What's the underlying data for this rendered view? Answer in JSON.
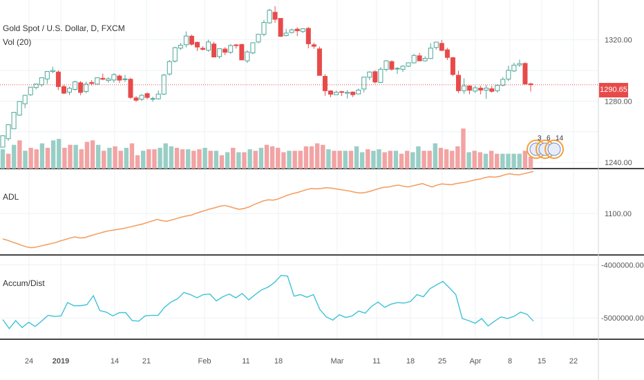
{
  "header": {
    "symbol": "Gold Spot / U.S. Dollar, D, FXCM",
    "volume": "Vol (20)"
  },
  "panes": {
    "adl": {
      "label": "ADL"
    },
    "ad": {
      "label": "Accum/Dist"
    }
  },
  "price_badge": {
    "value": "1290.65",
    "color": "#e84a4a"
  },
  "colors": {
    "up": "#4aa596",
    "down": "#e84a4a",
    "vol_up": "#98cec5",
    "vol_down": "#f2a3a3",
    "adl": "#f4a063",
    "ad": "#3cc3d6",
    "grid": "#eef1f4",
    "separator": "#444444"
  },
  "dividend_markers": {
    "labels": [
      "3",
      "6",
      "14"
    ],
    "color": "#f2a03c"
  },
  "chart_data": [
    {
      "type": "candlestick",
      "title": "Gold Spot / U.S. Dollar, D, FXCM",
      "y_ticks": [
        1240,
        1260,
        1280,
        1300,
        1320
      ],
      "y_tick_labels": [
        "1240.00",
        "1280.00",
        "1320.00"
      ],
      "ylim": [
        1236,
        1346
      ],
      "last_price": 1290.65,
      "x_labels": [
        "24",
        "2019",
        "14",
        "21",
        "Feb",
        "11",
        "18",
        "Mar",
        "11",
        "18",
        "25",
        "Apr",
        "8",
        "15",
        "22"
      ],
      "candles": [
        [
          1250.0,
          1257.4,
          1254.8,
          1249.8
        ],
        [
          1255.5,
          1264.6,
          1264.9,
          1254.1
        ],
        [
          1262.0,
          1272.7,
          1271.7,
          1262.7
        ],
        [
          1270.9,
          1279.8,
          1278.2,
          1270.5
        ],
        [
          1278.3,
          1283.8,
          1284.2,
          1275.4
        ],
        [
          1284.2,
          1289.1,
          1287.2,
          1283.5
        ],
        [
          1288.9,
          1291.2,
          1290.5,
          1287.7
        ],
        [
          1290.7,
          1295.3,
          1294.4,
          1289.4
        ],
        [
          1294.5,
          1299.3,
          1299.1,
          1291.2
        ],
        [
          1299.3,
          1300.0,
          1302.5,
          1298.2
        ],
        [
          1299.0,
          1289.5,
          1300.1,
          1287.2
        ],
        [
          1289.5,
          1285.2,
          1290.7,
          1284.6
        ],
        [
          1285.9,
          1288.4,
          1289.4,
          1283.9
        ],
        [
          1287.6,
          1292.6,
          1293.3,
          1286.9
        ],
        [
          1292.0,
          1285.7,
          1293.1,
          1283.9
        ],
        [
          1286.3,
          1291.1,
          1292.8,
          1285.2
        ],
        [
          1292.2,
          1291.5,
          1293.8,
          1290.1
        ],
        [
          1291.1,
          1295.3,
          1295.1,
          1290.8
        ],
        [
          1294.9,
          1294.3,
          1298.0,
          1293.6
        ],
        [
          1293.5,
          1294.5,
          1295.6,
          1292.0
        ],
        [
          1293.8,
          1297.3,
          1298.2,
          1292.1
        ],
        [
          1296.4,
          1293.7,
          1297.4,
          1291.9
        ],
        [
          1294.4,
          1294.5,
          1297.1,
          1292.5
        ],
        [
          1294.3,
          1282.4,
          1295.2,
          1281.4
        ],
        [
          1282.1,
          1280.6,
          1283.3,
          1279.5
        ],
        [
          1281.3,
          1283.8,
          1284.5,
          1280.1
        ],
        [
          1284.9,
          1282.4,
          1285.6,
          1281.2
        ],
        [
          1281.7,
          1281.7,
          1282.9,
          1279.6
        ],
        [
          1281.5,
          1284.6,
          1287.0,
          1281.0
        ],
        [
          1284.6,
          1297.0,
          1297.8,
          1284.0
        ],
        [
          1297.7,
          1305.8,
          1306.8,
          1296.6
        ],
        [
          1306.1,
          1314.9,
          1315.5,
          1305.3
        ],
        [
          1314.6,
          1316.5,
          1318.0,
          1313.3
        ],
        [
          1316.8,
          1322.5,
          1325.5,
          1315.0
        ],
        [
          1322.4,
          1317.1,
          1323.4,
          1316.3
        ],
        [
          1318.4,
          1315.3,
          1318.8,
          1312.7
        ],
        [
          1314.5,
          1313.8,
          1315.9,
          1313.0
        ],
        [
          1313.2,
          1318.6,
          1320.1,
          1312.2
        ],
        [
          1317.3,
          1308.8,
          1318.7,
          1308.6
        ],
        [
          1309.1,
          1314.2,
          1314.4,
          1307.7
        ],
        [
          1314.0,
          1311.9,
          1315.2,
          1310.0
        ],
        [
          1311.9,
          1316.3,
          1317.2,
          1310.8
        ],
        [
          1316.7,
          1316.2,
          1317.4,
          1314.3
        ],
        [
          1317.0,
          1306.9,
          1317.4,
          1307.3
        ],
        [
          1306.3,
          1312.1,
          1313.1,
          1304.9
        ],
        [
          1311.5,
          1318.1,
          1318.0,
          1310.6
        ],
        [
          1318.6,
          1323.6,
          1323.8,
          1317.7
        ],
        [
          1323.6,
          1331.3,
          1333.0,
          1322.3
        ],
        [
          1331.1,
          1339.3,
          1340.3,
          1330.5
        ],
        [
          1338.0,
          1333.4,
          1342.0,
          1331.1
        ],
        [
          1334.0,
          1322.3,
          1333.6,
          1321.9
        ],
        [
          1322.8,
          1324.4,
          1327.2,
          1322.3
        ],
        [
          1324.8,
          1326.5,
          1327.4,
          1324.2
        ],
        [
          1327.0,
          1325.9,
          1328.2,
          1322.4
        ],
        [
          1325.4,
          1327.2,
          1327.7,
          1324.5
        ],
        [
          1327.5,
          1317.4,
          1328.3,
          1314.5
        ],
        [
          1316.8,
          1315.8,
          1318.2,
          1314.2
        ],
        [
          1314.1,
          1296.8,
          1315.6,
          1296.7
        ],
        [
          1296.2,
          1286.8,
          1297.6,
          1283.5
        ],
        [
          1286.7,
          1284.5,
          1287.1,
          1282.5
        ],
        [
          1284.2,
          1285.8,
          1286.9,
          1284.5
        ],
        [
          1286.2,
          1285.7,
          1286.7,
          1283.3
        ],
        [
          1285.1,
          1285.8,
          1287.2,
          1281.7
        ],
        [
          1285.9,
          1284.2,
          1286.4,
          1282.6
        ],
        [
          1284.7,
          1287.2,
          1288.2,
          1284.4
        ],
        [
          1287.9,
          1295.7,
          1295.6,
          1285.7
        ],
        [
          1295.6,
          1299.0,
          1299.5,
          1293.8
        ],
        [
          1299.2,
          1292.5,
          1300.2,
          1291.4
        ],
        [
          1292.2,
          1300.8,
          1302.2,
          1291.8
        ],
        [
          1300.7,
          1306.3,
          1306.7,
          1299.4
        ],
        [
          1305.8,
          1300.8,
          1306.6,
          1299.9
        ],
        [
          1301.3,
          1301.4,
          1302.2,
          1297.8
        ],
        [
          1300.8,
          1302.8,
          1303.4,
          1299.1
        ],
        [
          1302.8,
          1305.0,
          1305.3,
          1302.2
        ],
        [
          1305.0,
          1309.8,
          1310.9,
          1304.5
        ],
        [
          1309.6,
          1306.3,
          1311.5,
          1306.0
        ],
        [
          1306.3,
          1307.9,
          1309.2,
          1305.9
        ],
        [
          1307.8,
          1314.6,
          1317.8,
          1307.4
        ],
        [
          1315.0,
          1318.5,
          1318.8,
          1313.6
        ],
        [
          1317.7,
          1313.1,
          1319.9,
          1312.6
        ],
        [
          1313.5,
          1308.5,
          1314.8,
          1306.9
        ],
        [
          1308.4,
          1297.4,
          1308.8,
          1296.3
        ],
        [
          1296.9,
          1286.8,
          1299.8,
          1285.3
        ],
        [
          1286.8,
          1290.0,
          1294.9,
          1284.8
        ],
        [
          1289.9,
          1287.1,
          1290.4,
          1284.5
        ],
        [
          1286.6,
          1288.7,
          1290.1,
          1285.4
        ],
        [
          1288.5,
          1287.2,
          1290.1,
          1284.4
        ],
        [
          1287.2,
          1288.5,
          1290.5,
          1281.5
        ],
        [
          1288.1,
          1286.4,
          1290.0,
          1285.5
        ],
        [
          1286.8,
          1290.3,
          1291.0,
          1285.6
        ],
        [
          1290.4,
          1294.2,
          1295.7,
          1289.6
        ],
        [
          1294.4,
          1300.1,
          1303.1,
          1293.0
        ],
        [
          1299.7,
          1303.5,
          1305.1,
          1299.0
        ],
        [
          1303.6,
          1304.5,
          1307.1,
          1302.3
        ],
        [
          1304.6,
          1291.2,
          1305.3,
          1290.8
        ],
        [
          1291.3,
          1290.7,
          1292.0,
          1286.3
        ]
      ],
      "volume": [
        {
          "v": 13,
          "up": true
        },
        {
          "v": 10,
          "up": false
        },
        {
          "v": 16,
          "up": true
        },
        {
          "v": 19,
          "up": false
        },
        {
          "v": 12,
          "up": true
        },
        {
          "v": 14,
          "up": false
        },
        {
          "v": 13,
          "up": false
        },
        {
          "v": 17,
          "up": true
        },
        {
          "v": 14,
          "up": false
        },
        {
          "v": 19,
          "up": true
        },
        {
          "v": 20,
          "up": true
        },
        {
          "v": 14,
          "up": false
        },
        {
          "v": 16,
          "up": false
        },
        {
          "v": 16,
          "up": true
        },
        {
          "v": 13,
          "up": false
        },
        {
          "v": 18,
          "up": false
        },
        {
          "v": 19,
          "up": false
        },
        {
          "v": 16,
          "up": true
        },
        {
          "v": 12,
          "up": false
        },
        {
          "v": 14,
          "up": true
        },
        {
          "v": 15,
          "up": false
        },
        {
          "v": 12,
          "up": false
        },
        {
          "v": 14,
          "up": true
        },
        {
          "v": 17,
          "up": false
        },
        {
          "v": 9,
          "up": false
        },
        {
          "v": 12,
          "up": true
        },
        {
          "v": 13,
          "up": false
        },
        {
          "v": 13,
          "up": false
        },
        {
          "v": 14,
          "up": true
        },
        {
          "v": 17,
          "up": true
        },
        {
          "v": 15,
          "up": true
        },
        {
          "v": 14,
          "up": false
        },
        {
          "v": 13,
          "up": false
        },
        {
          "v": 13,
          "up": true
        },
        {
          "v": 12,
          "up": false
        },
        {
          "v": 13,
          "up": false
        },
        {
          "v": 14,
          "up": true
        },
        {
          "v": 12,
          "up": false
        },
        {
          "v": 12,
          "up": true
        },
        {
          "v": 9,
          "up": false
        },
        {
          "v": 11,
          "up": true
        },
        {
          "v": 14,
          "up": false
        },
        {
          "v": 11,
          "up": true
        },
        {
          "v": 11,
          "up": false
        },
        {
          "v": 13,
          "up": true
        },
        {
          "v": 12,
          "up": false
        },
        {
          "v": 14,
          "up": true
        },
        {
          "v": 16,
          "up": false
        },
        {
          "v": 15,
          "up": false
        },
        {
          "v": 14,
          "up": false
        },
        {
          "v": 11,
          "up": false
        },
        {
          "v": 12,
          "up": true
        },
        {
          "v": 12,
          "up": false
        },
        {
          "v": 12,
          "up": false
        },
        {
          "v": 15,
          "up": false
        },
        {
          "v": 15,
          "up": false
        },
        {
          "v": 17,
          "up": false
        },
        {
          "v": 16,
          "up": false
        },
        {
          "v": 13,
          "up": true
        },
        {
          "v": 12,
          "up": false
        },
        {
          "v": 12,
          "up": false
        },
        {
          "v": 12,
          "up": true
        },
        {
          "v": 12,
          "up": false
        },
        {
          "v": 15,
          "up": true
        },
        {
          "v": 11,
          "up": true
        },
        {
          "v": 13,
          "up": false
        },
        {
          "v": 12,
          "up": true
        },
        {
          "v": 13,
          "up": true
        },
        {
          "v": 11,
          "up": false
        },
        {
          "v": 12,
          "up": false
        },
        {
          "v": 12,
          "up": true
        },
        {
          "v": 10,
          "up": false
        },
        {
          "v": 12,
          "up": false
        },
        {
          "v": 11,
          "up": true
        },
        {
          "v": 15,
          "up": true
        },
        {
          "v": 12,
          "up": false
        },
        {
          "v": 12,
          "up": false
        },
        {
          "v": 17,
          "up": true
        },
        {
          "v": 14,
          "up": false
        },
        {
          "v": 13,
          "up": false
        },
        {
          "v": 12,
          "up": false
        },
        {
          "v": 15,
          "up": false
        },
        {
          "v": 27,
          "up": false
        },
        {
          "v": 11,
          "up": true
        },
        {
          "v": 12,
          "up": false
        },
        {
          "v": 11,
          "up": false
        },
        {
          "v": 10,
          "up": true
        },
        {
          "v": 12,
          "up": false
        },
        {
          "v": 10,
          "up": false
        },
        {
          "v": 10,
          "up": true
        },
        {
          "v": 10,
          "up": true
        },
        {
          "v": 10,
          "up": true
        },
        {
          "v": 10,
          "up": true
        },
        {
          "v": 12,
          "up": false
        },
        {
          "v": 8,
          "up": false
        }
      ]
    },
    {
      "type": "line",
      "title": "ADL",
      "y_ticks": [
        1100
      ],
      "y_tick_labels": [
        "1100.00"
      ],
      "ylim": [
        880,
        1330
      ],
      "values": [
        965,
        958,
        948,
        940,
        930,
        922,
        918,
        922,
        928,
        934,
        940,
        946,
        955,
        962,
        970,
        975,
        970,
        972,
        980,
        988,
        995,
        1002,
        1008,
        1012,
        1016,
        1020,
        1026,
        1032,
        1038,
        1044,
        1052,
        1060,
        1068,
        1062,
        1058,
        1065,
        1072,
        1080,
        1086,
        1090,
        1100,
        1108,
        1116,
        1124,
        1130,
        1138,
        1142,
        1136,
        1128,
        1122,
        1126,
        1134,
        1146,
        1156,
        1166,
        1172,
        1170,
        1176,
        1186,
        1196,
        1204,
        1210,
        1218,
        1226,
        1232,
        1230,
        1232,
        1236,
        1234,
        1230,
        1226,
        1222,
        1218,
        1212,
        1208,
        1210,
        1216,
        1224,
        1232,
        1238,
        1240,
        1246,
        1250,
        1244,
        1240,
        1246,
        1252,
        1258,
        1248,
        1240,
        1250,
        1256,
        1254,
        1252,
        1258,
        1262,
        1266,
        1272,
        1278,
        1282,
        1290,
        1294,
        1292,
        1296,
        1304,
        1310,
        1306,
        1304,
        1310,
        1316,
        1322
      ]
    },
    {
      "type": "line",
      "title": "Accum/Dist",
      "y_ticks": [
        -4000000,
        -5000000
      ],
      "y_tick_labels": [
        "-4000000.0000",
        "-5000000.0000"
      ],
      "ylim": [
        -5400000,
        -3840000
      ],
      "values": [
        -5030000,
        -5200000,
        -5050000,
        -5180000,
        -5080000,
        -5160000,
        -5060000,
        -4950000,
        -4970000,
        -4960000,
        -4710000,
        -4770000,
        -4770000,
        -4750000,
        -4580000,
        -4860000,
        -4890000,
        -4960000,
        -4900000,
        -4900000,
        -5050000,
        -5060000,
        -4960000,
        -4950000,
        -4950000,
        -4800000,
        -4700000,
        -4640000,
        -4520000,
        -4560000,
        -4620000,
        -4560000,
        -4550000,
        -4680000,
        -4600000,
        -4550000,
        -4620000,
        -4540000,
        -4660000,
        -4560000,
        -4470000,
        -4420000,
        -4330000,
        -4200000,
        -4210000,
        -4590000,
        -4560000,
        -4610000,
        -4560000,
        -4840000,
        -4980000,
        -5040000,
        -4940000,
        -4990000,
        -4960000,
        -4870000,
        -4910000,
        -4780000,
        -4700000,
        -4800000,
        -4740000,
        -4710000,
        -4720000,
        -4690000,
        -4560000,
        -4600000,
        -4450000,
        -4380000,
        -4310000,
        -4430000,
        -4560000,
        -5010000,
        -5050000,
        -5100000,
        -5010000,
        -5150000,
        -5060000,
        -4980000,
        -5010000,
        -4970000,
        -4890000,
        -4930000,
        -5060000
      ]
    }
  ]
}
